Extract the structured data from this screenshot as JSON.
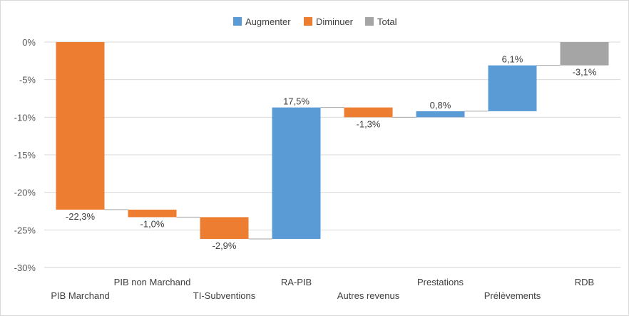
{
  "chart_data": {
    "type": "waterfall",
    "title": "",
    "xlabel": "",
    "ylabel": "",
    "ylim": [
      -30,
      0
    ],
    "y_ticks": [
      0,
      -5,
      -10,
      -15,
      -20,
      -25,
      -30
    ],
    "y_tick_labels": [
      "0%",
      "-5%",
      "-10%",
      "-15%",
      "-20%",
      "-25%",
      "-30%"
    ],
    "grid": true,
    "legend_position": "top-center",
    "legend": [
      {
        "key": "increase",
        "label": "Augmenter",
        "color": "#5b9bd5"
      },
      {
        "key": "decrease",
        "label": "Diminuer",
        "color": "#ed7d31"
      },
      {
        "key": "total",
        "label": "Total",
        "color": "#a5a5a5"
      }
    ],
    "categories": [
      "PIB Marchand",
      "PIB non Marchand",
      "TI-Subventions",
      "RA-PIB",
      "Autres revenus",
      "Prestations",
      "Prélèvements",
      "RDB"
    ],
    "values": [
      -22.3,
      -1.0,
      -2.9,
      17.5,
      -1.3,
      0.8,
      6.1,
      -3.1
    ],
    "kinds": [
      "decrease",
      "decrease",
      "decrease",
      "increase",
      "decrease",
      "increase",
      "increase",
      "total"
    ],
    "data_labels": [
      "-22,3%",
      "-1,0%",
      "-2,9%",
      "17,5%",
      "-1,3%",
      "0,8%",
      "6,1%",
      "-3,1%"
    ]
  }
}
